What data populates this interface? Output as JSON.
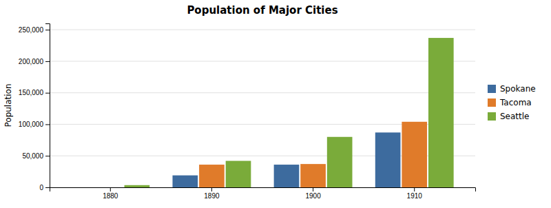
{
  "chart_data": {
    "type": "bar",
    "title": "Population of Major Cities",
    "ylabel": "Population",
    "categories": [
      "1880",
      "1890",
      "1900",
      "1910"
    ],
    "series": [
      {
        "name": "Spokane",
        "color": "#3D6B9E",
        "values": [
          0,
          19000,
          36000,
          87000
        ]
      },
      {
        "name": "Tacoma",
        "color": "#E07B2A",
        "values": [
          0,
          36000,
          37000,
          104000
        ]
      },
      {
        "name": "Seattle",
        "color": "#7AAB3A",
        "values": [
          3500,
          42000,
          80000,
          237000
        ]
      }
    ],
    "ylim": [
      0,
      260000
    ],
    "yticks": [
      0,
      {
        "value": 50000,
        "label": "50,000"
      },
      {
        "value": 100000,
        "label": "100,000"
      },
      {
        "value": 150000,
        "label": "150,000"
      },
      {
        "value": 200000,
        "label": "200,000"
      },
      {
        "value": 250000,
        "label": "250,000"
      }
    ],
    "grid": true,
    "legend": "right"
  }
}
